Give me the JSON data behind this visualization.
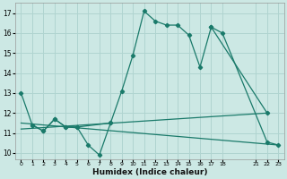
{
  "background_color": "#cce8e4",
  "grid_color": "#b0d4d0",
  "line_color": "#1a7a6a",
  "xlabel": "Humidex (Indice chaleur)",
  "xlim": [
    -0.5,
    23.5
  ],
  "ylim": [
    9.7,
    17.5
  ],
  "yticks": [
    10,
    11,
    12,
    13,
    14,
    15,
    16,
    17
  ],
  "xtick_positions": [
    0,
    1,
    2,
    3,
    4,
    5,
    6,
    7,
    8,
    9,
    10,
    11,
    12,
    13,
    14,
    15,
    16,
    17,
    18,
    21,
    22,
    23
  ],
  "xtick_labels": [
    "0",
    "1",
    "2",
    "3",
    "4",
    "5",
    "6",
    "7",
    "8",
    "9",
    "10",
    "11",
    "12",
    "13",
    "14",
    "15",
    "16",
    "17",
    "18",
    "21",
    "22",
    "23"
  ],
  "line1_x": [
    0,
    1,
    2,
    3,
    4,
    5,
    6,
    7,
    8,
    9,
    10,
    11,
    12,
    13,
    14,
    15,
    16,
    17,
    22
  ],
  "line1_y": [
    13.0,
    11.4,
    11.1,
    11.7,
    11.3,
    11.3,
    10.4,
    9.9,
    11.5,
    13.1,
    14.9,
    17.1,
    16.6,
    16.4,
    16.4,
    15.9,
    14.3,
    16.3,
    12.0
  ],
  "line2_x": [
    17,
    18,
    22,
    23
  ],
  "line2_y": [
    16.3,
    16.0,
    10.55,
    10.4
  ],
  "line3_x": [
    0,
    22
  ],
  "line3_y": [
    11.2,
    12.0
  ],
  "line4_x": [
    0,
    23
  ],
  "line4_y": [
    11.5,
    10.4
  ],
  "line5_x": [
    1,
    2,
    3,
    4,
    5,
    8
  ],
  "line5_y": [
    11.4,
    11.1,
    11.7,
    11.3,
    11.3,
    11.5
  ]
}
